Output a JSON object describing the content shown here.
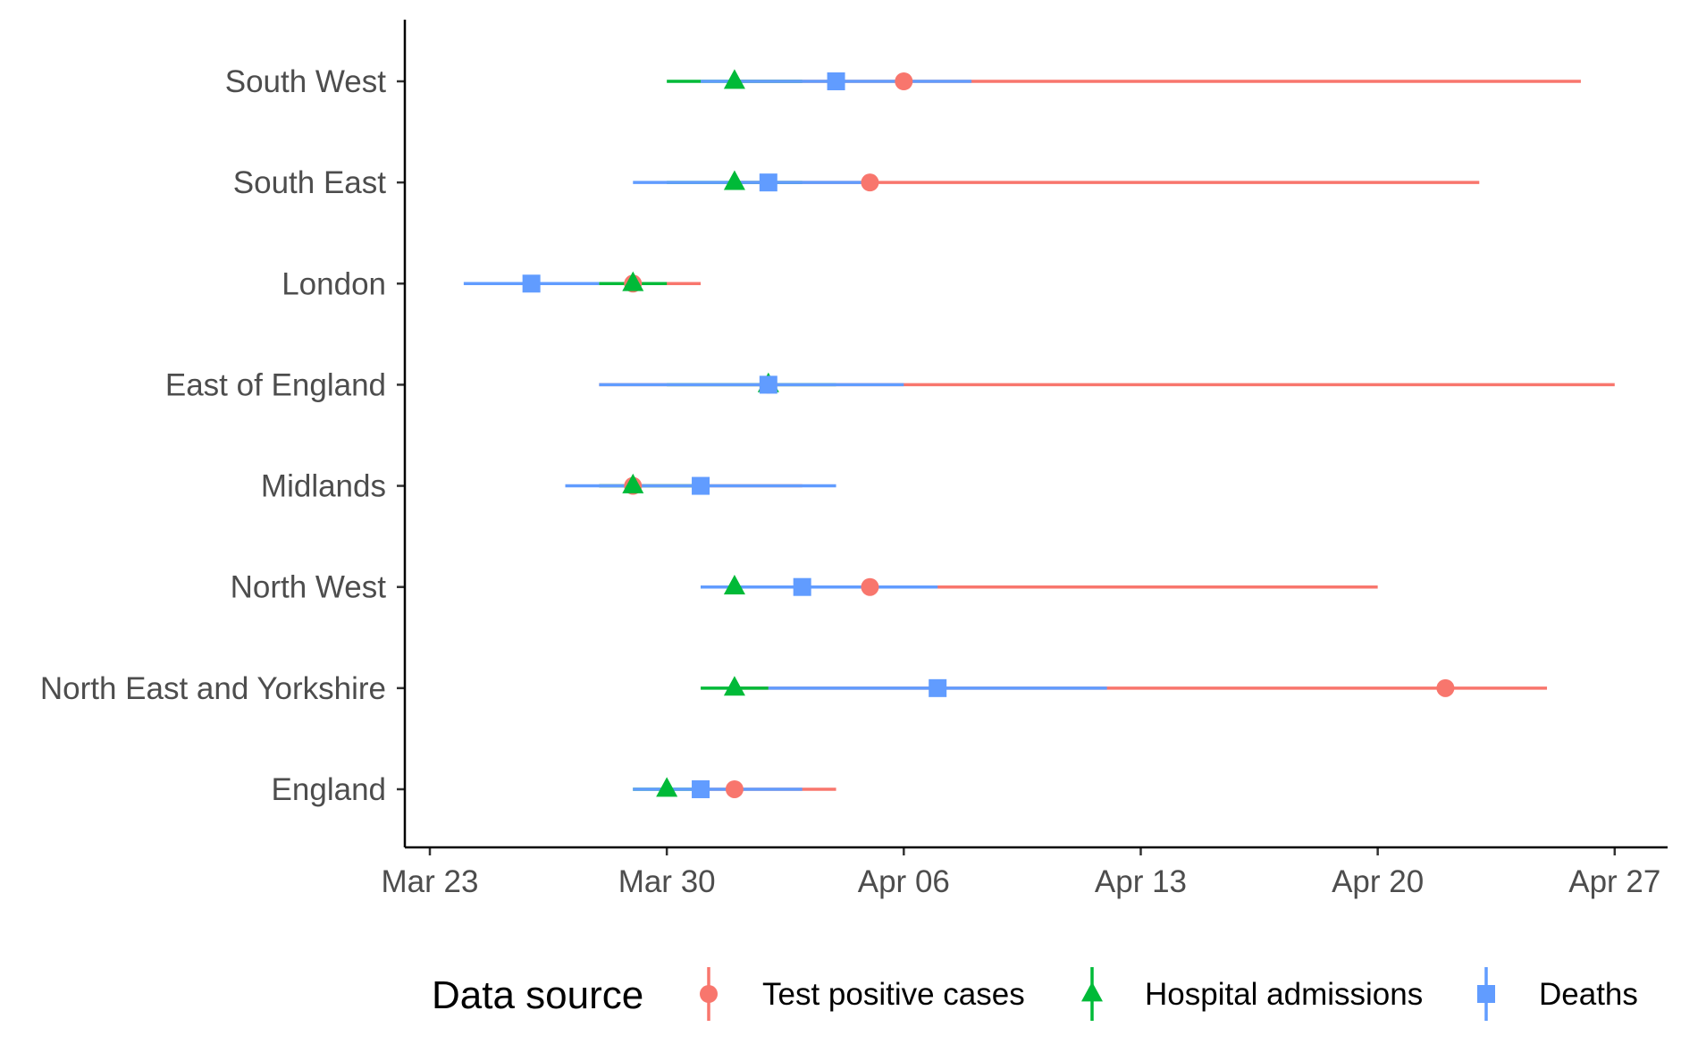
{
  "chart_data": {
    "type": "scatter",
    "title": "",
    "xlabel": "",
    "ylabel": "",
    "x_axis_type": "date",
    "xlim": [
      "2020-03-22",
      "2020-04-28"
    ],
    "x_ticks": [
      {
        "date": "2020-03-23",
        "label": "Mar 23"
      },
      {
        "date": "2020-03-30",
        "label": "Mar 30"
      },
      {
        "date": "2020-04-06",
        "label": "Apr 06"
      },
      {
        "date": "2020-04-13",
        "label": "Apr 13"
      },
      {
        "date": "2020-04-20",
        "label": "Apr 20"
      },
      {
        "date": "2020-04-27",
        "label": "Apr 27"
      }
    ],
    "categories": [
      "South West",
      "South East",
      "London",
      "East of England",
      "Midlands",
      "North West",
      "North East and Yorkshire",
      "England"
    ],
    "grid": false,
    "legend_position": "bottom",
    "legend_title": "Data source",
    "series": [
      {
        "name": "Test positive cases",
        "color": "#F8766D",
        "marker": "circle",
        "points": [
          {
            "category": "South West",
            "x": "2020-04-06",
            "low": "2020-04-01",
            "high": "2020-04-26"
          },
          {
            "category": "South East",
            "x": "2020-04-05",
            "low": "2020-04-01",
            "high": "2020-04-23"
          },
          {
            "category": "London",
            "x": "2020-03-29",
            "low": "2020-03-28",
            "high": "2020-03-31"
          },
          {
            "category": "East of England",
            "x": "2020-04-02",
            "low": "2020-03-28",
            "high": "2020-04-27"
          },
          {
            "category": "Midlands",
            "x": "2020-03-29",
            "low": "2020-03-28",
            "high": "2020-04-03"
          },
          {
            "category": "North West",
            "x": "2020-04-05",
            "low": "2020-04-01",
            "high": "2020-04-20"
          },
          {
            "category": "North East and Yorkshire",
            "x": "2020-04-22",
            "low": "2020-04-01",
            "high": "2020-04-25"
          },
          {
            "category": "England",
            "x": "2020-04-01",
            "low": "2020-03-31",
            "high": "2020-04-04"
          }
        ]
      },
      {
        "name": "Hospital admissions",
        "color": "#00BA38",
        "marker": "triangle",
        "points": [
          {
            "category": "South West",
            "x": "2020-04-01",
            "low": "2020-03-30",
            "high": "2020-04-03"
          },
          {
            "category": "South East",
            "x": "2020-04-01",
            "low": "2020-03-30",
            "high": "2020-04-03"
          },
          {
            "category": "London",
            "x": "2020-03-29",
            "low": "2020-03-28",
            "high": "2020-03-30"
          },
          {
            "category": "East of England",
            "x": "2020-04-02",
            "low": "2020-03-30",
            "high": "2020-04-04"
          },
          {
            "category": "Midlands",
            "x": "2020-03-29",
            "low": "2020-03-28",
            "high": "2020-03-31"
          },
          {
            "category": "North West",
            "x": "2020-04-01",
            "low": "2020-03-31",
            "high": "2020-04-02"
          },
          {
            "category": "North East and Yorkshire",
            "x": "2020-04-01",
            "low": "2020-03-31",
            "high": "2020-04-02"
          },
          {
            "category": "England",
            "x": "2020-03-30",
            "low": "2020-03-29",
            "high": "2020-03-31"
          }
        ]
      },
      {
        "name": "Deaths",
        "color": "#619CFF",
        "marker": "square",
        "points": [
          {
            "category": "South West",
            "x": "2020-04-04",
            "low": "2020-03-31",
            "high": "2020-04-08"
          },
          {
            "category": "South East",
            "x": "2020-04-02",
            "low": "2020-03-29",
            "high": "2020-04-05"
          },
          {
            "category": "London",
            "x": "2020-03-26",
            "low": "2020-03-24",
            "high": "2020-03-28"
          },
          {
            "category": "East of England",
            "x": "2020-04-02",
            "low": "2020-03-28",
            "high": "2020-04-06"
          },
          {
            "category": "Midlands",
            "x": "2020-03-31",
            "low": "2020-03-27",
            "high": "2020-04-04"
          },
          {
            "category": "North West",
            "x": "2020-04-03",
            "low": "2020-03-31",
            "high": "2020-04-07"
          },
          {
            "category": "North East and Yorkshire",
            "x": "2020-04-07",
            "low": "2020-04-02",
            "high": "2020-04-12"
          },
          {
            "category": "England",
            "x": "2020-03-31",
            "low": "2020-03-29",
            "high": "2020-04-03"
          }
        ]
      }
    ]
  }
}
